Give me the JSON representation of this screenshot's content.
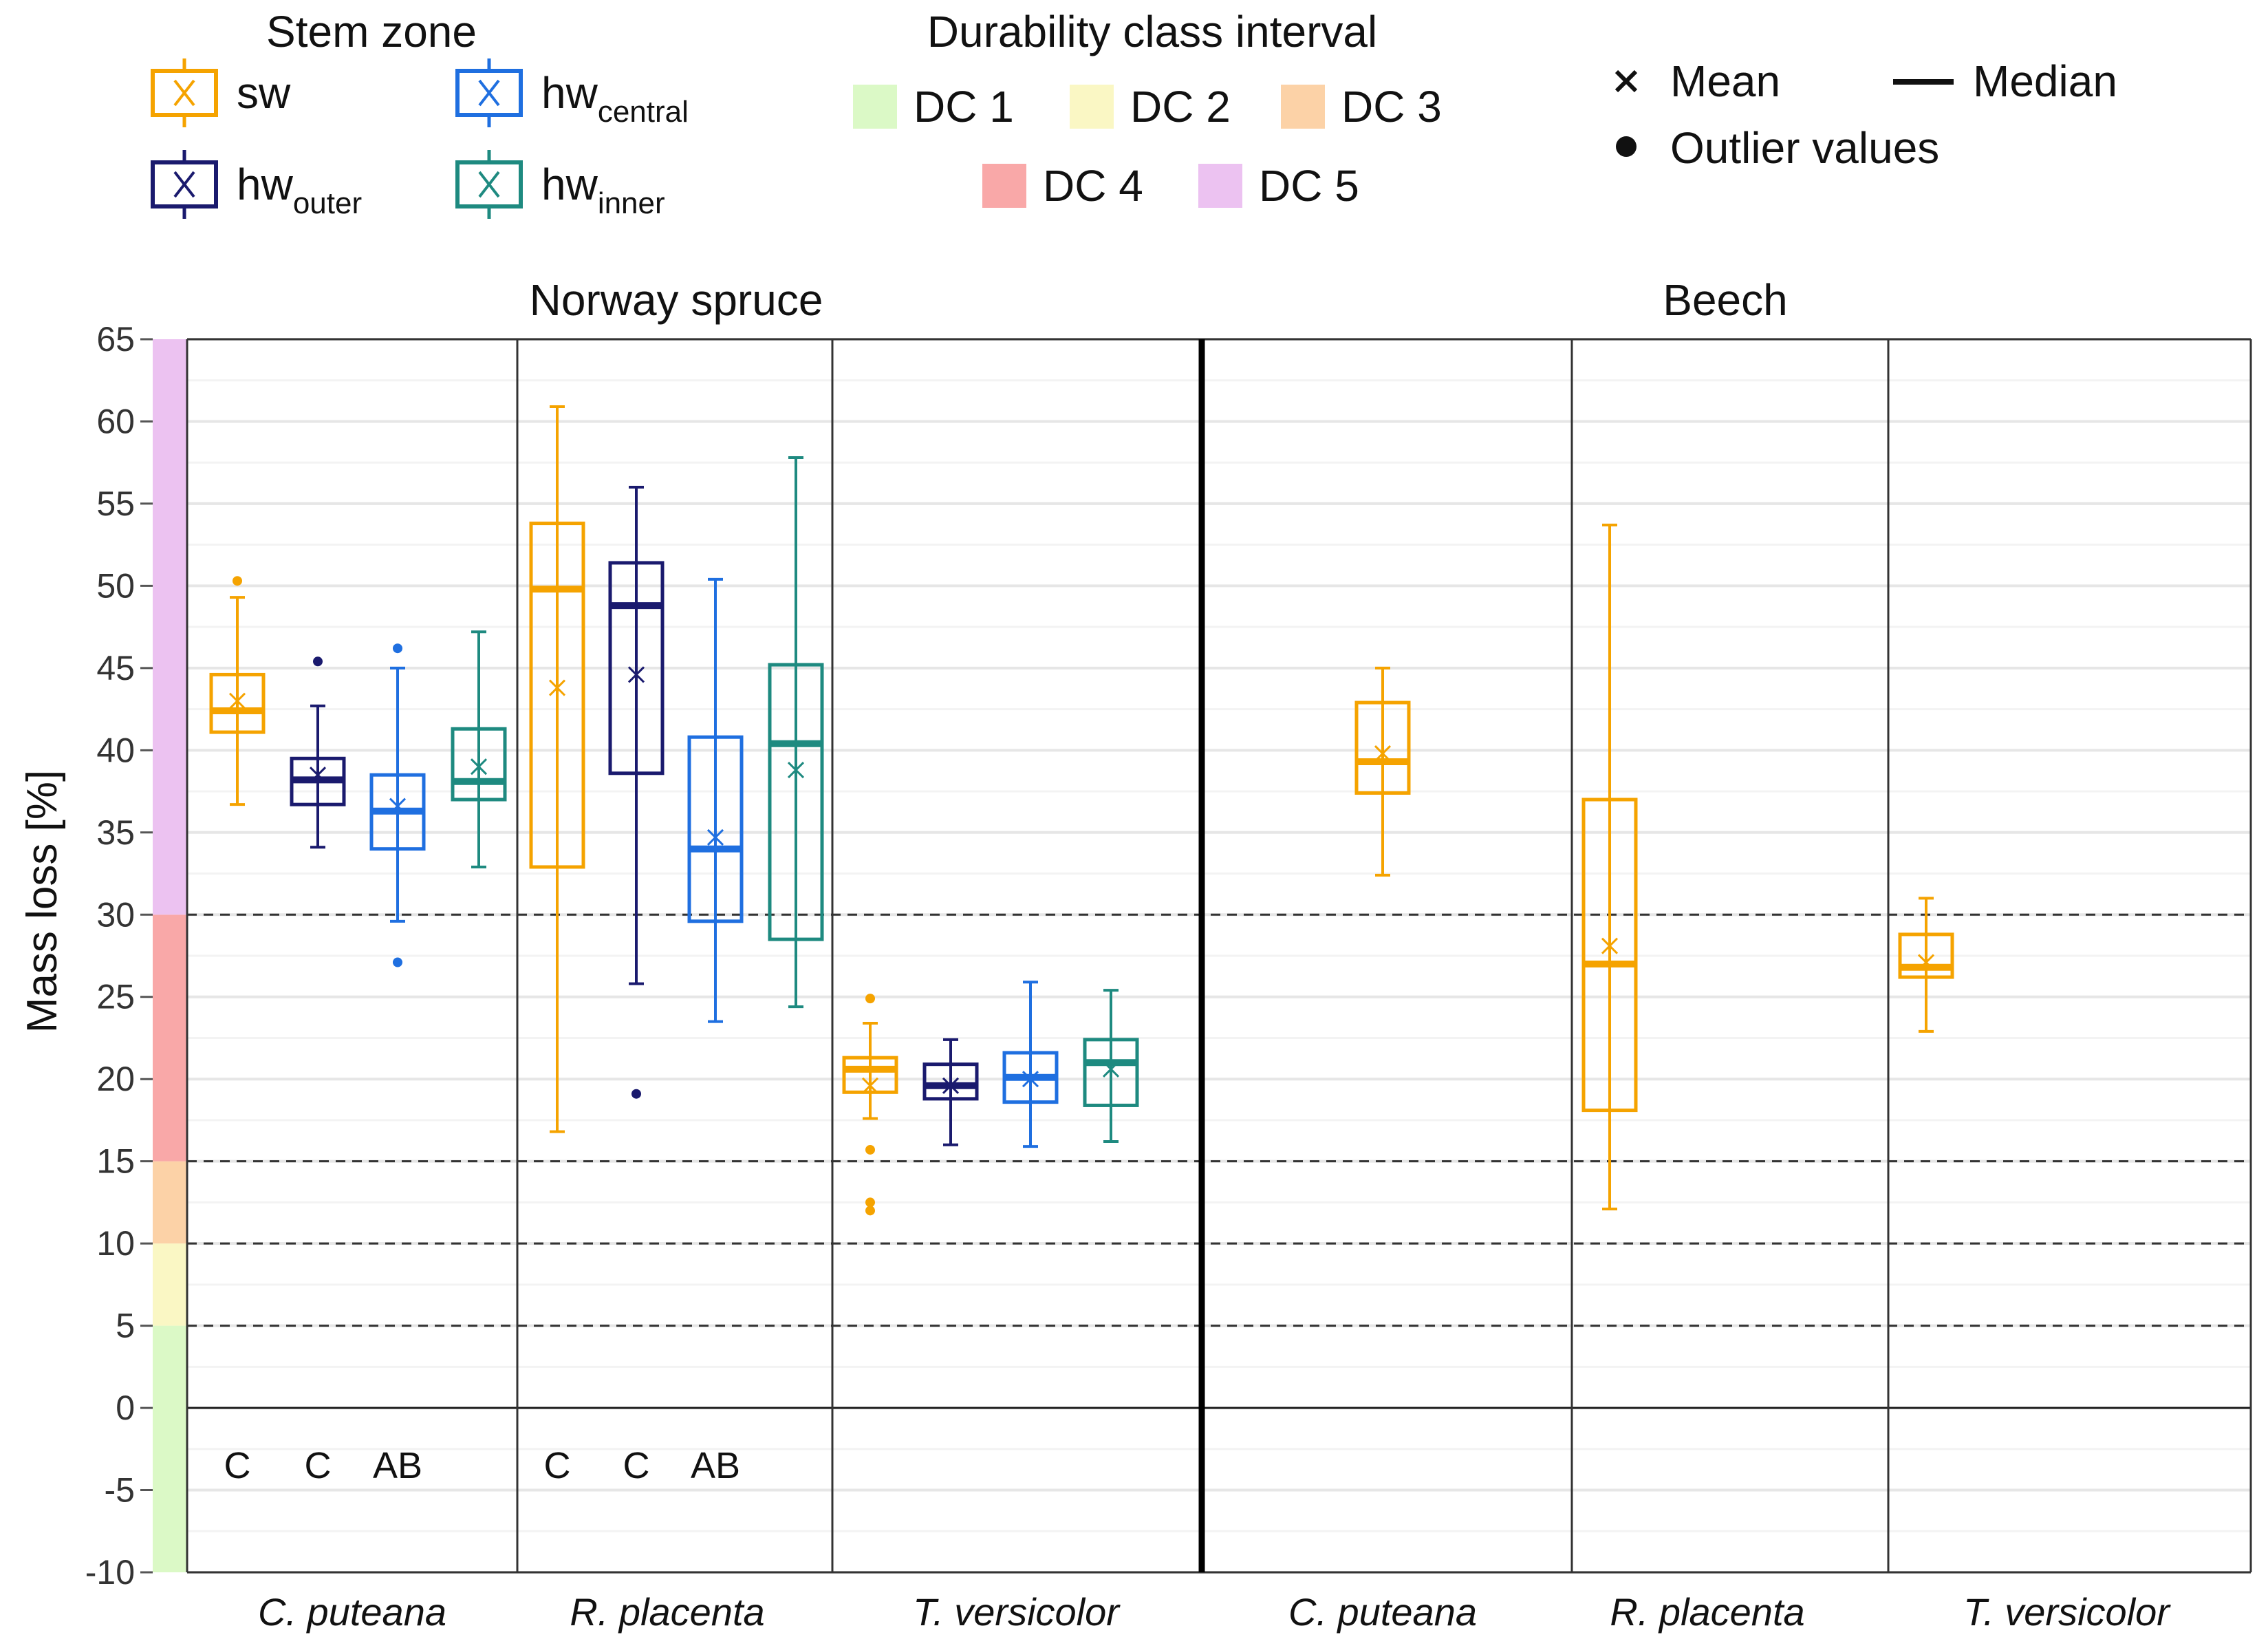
{
  "legends": {
    "stem_zone": {
      "title": "Stem zone",
      "items": [
        {
          "key": "sw",
          "base": "sw",
          "sub": "",
          "color": "#F5A300"
        },
        {
          "key": "hw_outer",
          "base": "hw",
          "sub": "outer",
          "color": "#1A1A6E"
        },
        {
          "key": "hw_central",
          "base": "hw",
          "sub": "central",
          "color": "#1F6FE0"
        },
        {
          "key": "hw_inner",
          "base": "hw",
          "sub": "inner",
          "color": "#1E8A80"
        }
      ]
    },
    "durability": {
      "title": "Durability class interval",
      "items": [
        {
          "label": "DC 1",
          "color": "#DBF9C6"
        },
        {
          "label": "DC 2",
          "color": "#FAF7C4"
        },
        {
          "label": "DC 3",
          "color": "#FCD2A7"
        },
        {
          "label": "DC 4",
          "color": "#F9A8A8"
        },
        {
          "label": "DC 5",
          "color": "#ECC2F1"
        }
      ]
    },
    "symbols": {
      "mean": "Mean",
      "median": "Median",
      "outlier": "Outlier values"
    }
  },
  "chart_data": {
    "type": "boxplot",
    "ylabel": "Mass loss [%]",
    "ylim": [
      -10,
      65
    ],
    "yticks": [
      65,
      60,
      55,
      50,
      45,
      40,
      35,
      30,
      25,
      20,
      15,
      10,
      5,
      0,
      -5,
      -10
    ],
    "dc_thresholds": [
      5,
      10,
      15,
      30
    ],
    "dc_bands": [
      {
        "label": "DC 1",
        "from": -10,
        "to": 5
      },
      {
        "label": "DC 2",
        "from": 5,
        "to": 10
      },
      {
        "label": "DC 3",
        "from": 10,
        "to": 15
      },
      {
        "label": "DC 4",
        "from": 15,
        "to": 30
      },
      {
        "label": "DC 5",
        "from": 30,
        "to": 65
      }
    ],
    "facets": [
      {
        "name": "Norway spruce",
        "groups": [
          {
            "fungus": "C. puteana",
            "letters": [
              "C",
              "C",
              "AB"
            ],
            "boxes": [
              {
                "zone": "sw",
                "min": 36.7,
                "q1": 41.1,
                "median": 42.4,
                "q3": 44.6,
                "max": 49.3,
                "mean": 43.0,
                "outliers": [
                  50.3
                ]
              },
              {
                "zone": "hw_outer",
                "min": 34.1,
                "q1": 36.7,
                "median": 38.2,
                "q3": 39.5,
                "max": 42.7,
                "mean": 38.5,
                "outliers": [
                  45.4
                ]
              },
              {
                "zone": "hw_central",
                "min": 29.6,
                "q1": 34.0,
                "median": 36.3,
                "q3": 38.5,
                "max": 45.0,
                "mean": 36.6,
                "outliers": [
                  46.2,
                  27.1
                ]
              },
              {
                "zone": "hw_inner",
                "min": 32.9,
                "q1": 37.0,
                "median": 38.1,
                "q3": 41.3,
                "max": 47.2,
                "mean": 39.0,
                "outliers": []
              }
            ]
          },
          {
            "fungus": "R. placenta",
            "letters": [
              "C",
              "C",
              "AB"
            ],
            "boxes": [
              {
                "zone": "sw",
                "min": 16.8,
                "q1": 32.9,
                "median": 49.8,
                "q3": 53.8,
                "max": 60.9,
                "mean": 43.8,
                "outliers": []
              },
              {
                "zone": "hw_outer",
                "min": 25.8,
                "q1": 38.6,
                "median": 48.8,
                "q3": 51.4,
                "max": 56.0,
                "mean": 44.6,
                "outliers": [
                  19.1
                ]
              },
              {
                "zone": "hw_central",
                "min": 23.5,
                "q1": 29.6,
                "median": 34.0,
                "q3": 40.8,
                "max": 50.4,
                "mean": 34.7,
                "outliers": []
              },
              {
                "zone": "hw_inner",
                "min": 24.4,
                "q1": 28.5,
                "median": 40.4,
                "q3": 45.2,
                "max": 57.8,
                "mean": 38.8,
                "outliers": []
              }
            ]
          },
          {
            "fungus": "T. versicolor",
            "letters": [],
            "boxes": [
              {
                "zone": "sw",
                "min": 17.6,
                "q1": 19.2,
                "median": 20.6,
                "q3": 21.3,
                "max": 23.4,
                "mean": 19.6,
                "outliers": [
                  24.9,
                  15.7,
                  12.5,
                  12.0
                ]
              },
              {
                "zone": "hw_outer",
                "min": 16.0,
                "q1": 18.8,
                "median": 19.6,
                "q3": 20.9,
                "max": 22.4,
                "mean": 19.6,
                "outliers": []
              },
              {
                "zone": "hw_central",
                "min": 15.9,
                "q1": 18.6,
                "median": 20.1,
                "q3": 21.6,
                "max": 25.9,
                "mean": 20.0,
                "outliers": []
              },
              {
                "zone": "hw_inner",
                "min": 16.2,
                "q1": 18.4,
                "median": 21.0,
                "q3": 22.4,
                "max": 25.4,
                "mean": 20.6,
                "outliers": []
              }
            ]
          }
        ]
      },
      {
        "name": "Beech",
        "groups": [
          {
            "fungus": "C. puteana",
            "letters": [],
            "boxes": [
              {
                "zone": "sw",
                "min": 32.4,
                "q1": 37.4,
                "median": 39.3,
                "q3": 42.9,
                "max": 45.0,
                "mean": 39.8,
                "outliers": []
              }
            ]
          },
          {
            "fungus": "R. placenta",
            "letters": [],
            "boxes": [
              {
                "zone": "sw",
                "min": 12.1,
                "q1": 18.1,
                "median": 27.0,
                "q3": 37.0,
                "max": 53.7,
                "mean": 28.1,
                "outliers": []
              }
            ]
          },
          {
            "fungus": "T. versicolor",
            "letters": [],
            "boxes": [
              {
                "zone": "sw",
                "min": 22.9,
                "q1": 26.2,
                "median": 26.8,
                "q3": 28.8,
                "max": 31.0,
                "mean": 27.1,
                "outliers": []
              }
            ]
          }
        ]
      }
    ]
  }
}
